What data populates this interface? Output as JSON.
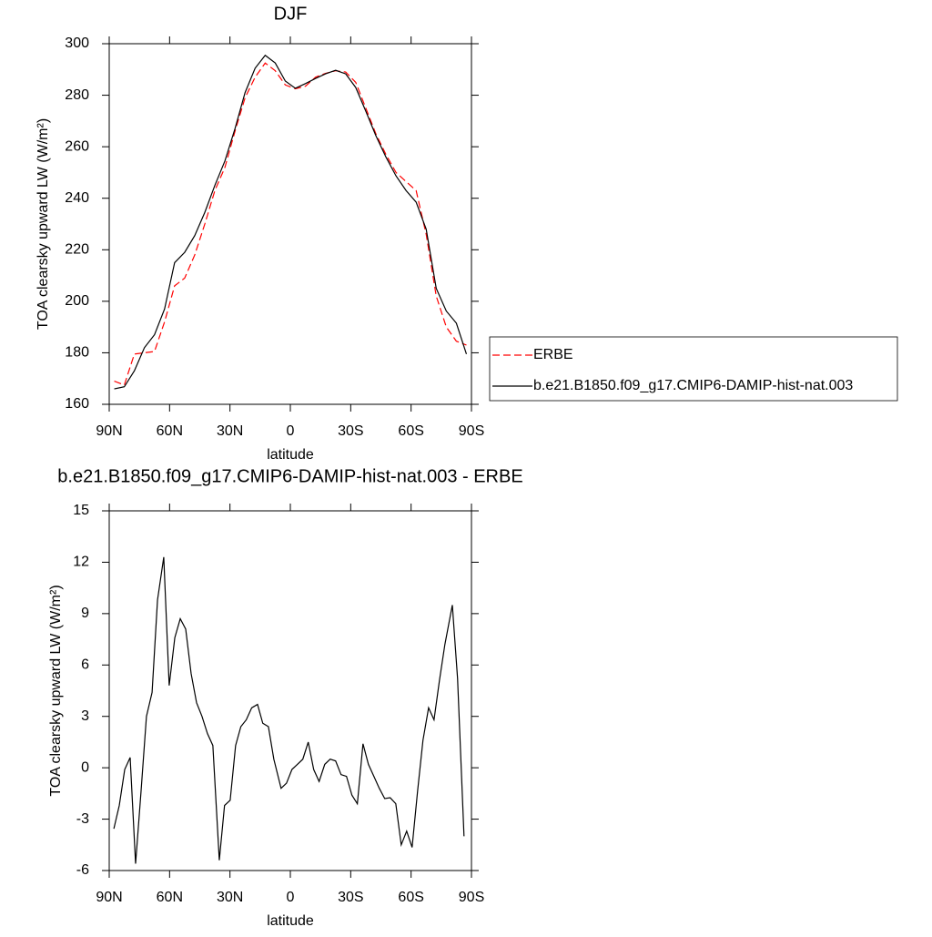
{
  "chart_data": [
    {
      "type": "line",
      "title": "DJF",
      "x_label": "latitude",
      "y_label": "TOA clearsky upward LW (W/m²)",
      "x": [
        87.5,
        82.5,
        77.5,
        72.5,
        67.5,
        62.5,
        57.5,
        52.5,
        47.5,
        42.5,
        37.5,
        32.5,
        27.5,
        22.5,
        17.5,
        12.5,
        7.5,
        2.5,
        -2.5,
        -7.5,
        -12.5,
        -17.5,
        -22.5,
        -27.5,
        -32.5,
        -37.5,
        -42.5,
        -47.5,
        -52.5,
        -57.5,
        -62.5,
        -67.5,
        -72.5,
        -77.5,
        -82.5,
        -87.5
      ],
      "series": [
        {
          "name": "ERBE",
          "color": "#ff0000",
          "dashed": true,
          "values": [
            169,
            167.5,
            179.5,
            180,
            180.5,
            192,
            206,
            209,
            218,
            230,
            243,
            252,
            266,
            279,
            287,
            292.5,
            289.5,
            284,
            282.5,
            283.5,
            287,
            288.5,
            289.5,
            289,
            285,
            275,
            265,
            257,
            250,
            246.5,
            243,
            226,
            202,
            190,
            184.5,
            183
          ]
        },
        {
          "name": "b.e21.B1850.f09_g17.CMIP6-DAMIP-hist-nat.003",
          "color": "#000000",
          "dashed": false,
          "values": [
            166,
            166.8,
            173,
            182,
            187,
            197,
            215,
            219,
            225.5,
            234.5,
            245,
            254.5,
            267,
            281,
            290.5,
            295.5,
            292.5,
            285.5,
            282.7,
            284.5,
            286.5,
            288.3,
            289.7,
            288.3,
            283,
            273.8,
            264.3,
            256,
            248.7,
            243,
            238.5,
            228,
            205,
            196.2,
            191.5,
            179.5
          ]
        }
      ],
      "xlim": [
        90,
        -90
      ],
      "xticks": [
        {
          "value": 90,
          "label": "90N"
        },
        {
          "value": 60,
          "label": "60N"
        },
        {
          "value": 30,
          "label": "30N"
        },
        0,
        {
          "value": -30,
          "label": "30S"
        },
        {
          "value": -60,
          "label": "60S"
        },
        {
          "value": -90,
          "label": "90S"
        }
      ],
      "ylim": [
        160,
        300
      ],
      "yticks": [
        160,
        180,
        200,
        220,
        240,
        260,
        280,
        300
      ],
      "legend": "right"
    },
    {
      "type": "line",
      "title": "b.e21.B1850.f09_g17.CMIP6-DAMIP-hist-nat.003 - ERBE",
      "x_label": "latitude",
      "y_label": "TOA clearsky upward LW (W/m²)",
      "x": [
        87.7,
        85,
        82.3,
        79.6,
        76.9,
        74.2,
        71.5,
        68.7,
        66,
        62.9,
        60.2,
        57.4,
        54.7,
        52,
        49.3,
        46.6,
        43.9,
        41.2,
        38.5,
        35.3,
        32.7,
        29.9,
        27.2,
        24.6,
        21.9,
        19.2,
        16.3,
        13.7,
        10.9,
        8.2,
        4.6,
        1.9,
        -0.8,
        -3.5,
        -6.2,
        -8.9,
        -11.6,
        -14.3,
        -17.1,
        -19.8,
        -22.5,
        -25.2,
        -27.9,
        -30.6,
        -33.3,
        -36.1,
        -38.8,
        -41.5,
        -44.2,
        -46.9,
        -49.6,
        -52.4,
        -55.1,
        -57.8,
        -60.5,
        -63.2,
        -65.9,
        -68.7,
        -71.4,
        -74.1,
        -76.8,
        -80.5,
        -83.1,
        -86.3
      ],
      "values": [
        -3.56,
        -2.2,
        -0.1,
        0.6,
        -5.6,
        -1.4,
        3.0,
        4.4,
        9.8,
        12.3,
        4.8,
        7.6,
        8.7,
        8.1,
        5.5,
        3.8,
        3.0,
        2.0,
        1.3,
        -5.4,
        -2.2,
        -1.9,
        1.3,
        2.4,
        2.8,
        3.5,
        3.7,
        2.6,
        2.4,
        0.5,
        -1.2,
        -0.9,
        -0.1,
        0.2,
        0.5,
        1.5,
        -0.1,
        -0.8,
        0.2,
        0.5,
        0.4,
        -0.4,
        -0.5,
        -1.6,
        -2.1,
        1.4,
        0.2,
        -0.5,
        -1.2,
        -1.8,
        -1.75,
        -2.1,
        -4.5,
        -3.7,
        -4.65,
        -1.4,
        1.6,
        3.5,
        2.8,
        5.1,
        7.2,
        9.5,
        5.2,
        -4.0
      ],
      "color": "#000000",
      "xlim": [
        90,
        -90
      ],
      "xticks": [
        {
          "value": 90,
          "label": "90N"
        },
        {
          "value": 60,
          "label": "60N"
        },
        {
          "value": 30,
          "label": "30N"
        },
        0,
        {
          "value": -30,
          "label": "30S"
        },
        {
          "value": -60,
          "label": "60S"
        },
        {
          "value": -90,
          "label": "90S"
        }
      ],
      "ylim": [
        -6,
        15
      ],
      "yticks": [
        -6,
        -3,
        0,
        3,
        6,
        9,
        12,
        15
      ]
    }
  ]
}
